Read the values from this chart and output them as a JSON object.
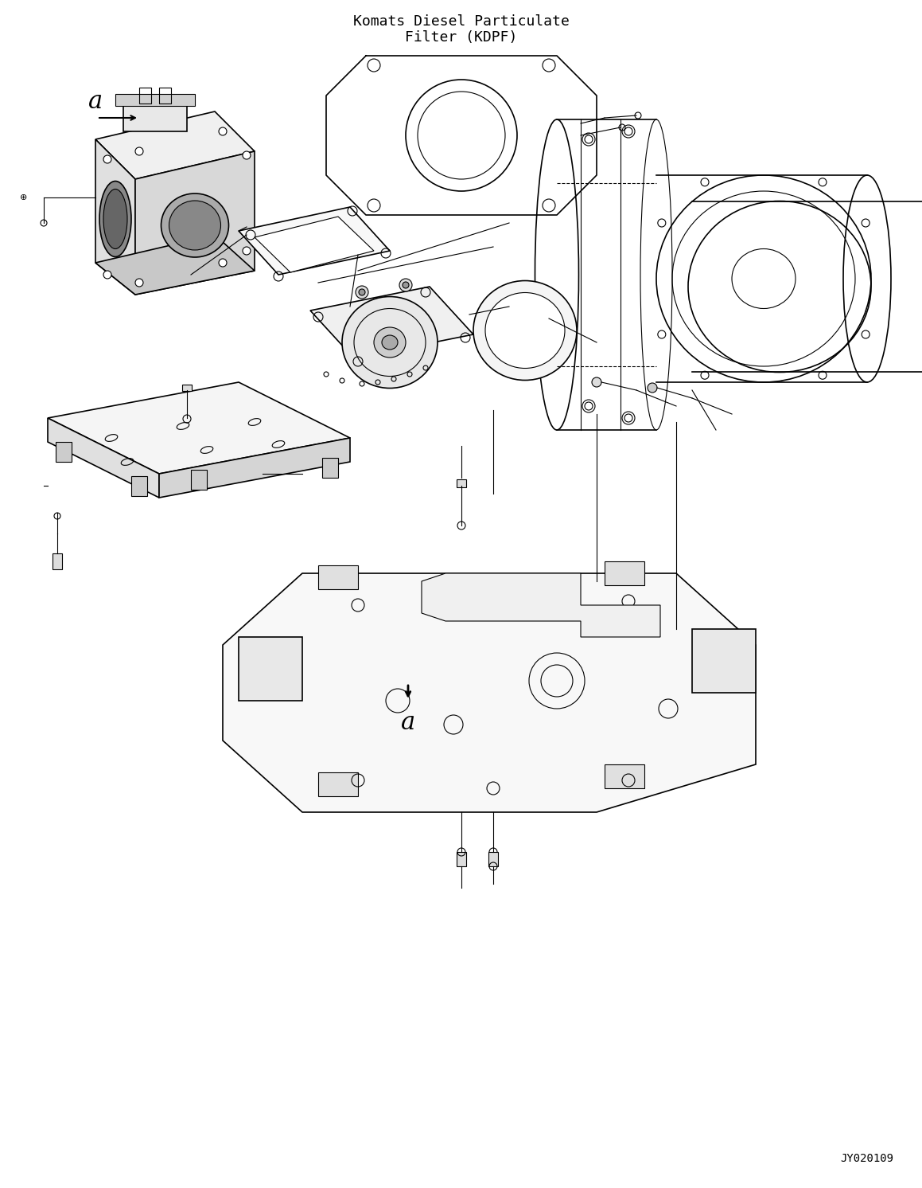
{
  "title_line1": "Komats Diesel Particulate",
  "title_line2": "Filter (KDPF)",
  "watermark": "JY020109",
  "bg_color": "#ffffff",
  "line_color": "#000000",
  "title_fontsize": 13,
  "watermark_fontsize": 10,
  "label_a_fontsize": 22,
  "fig_width": 11.59,
  "fig_height": 14.92
}
